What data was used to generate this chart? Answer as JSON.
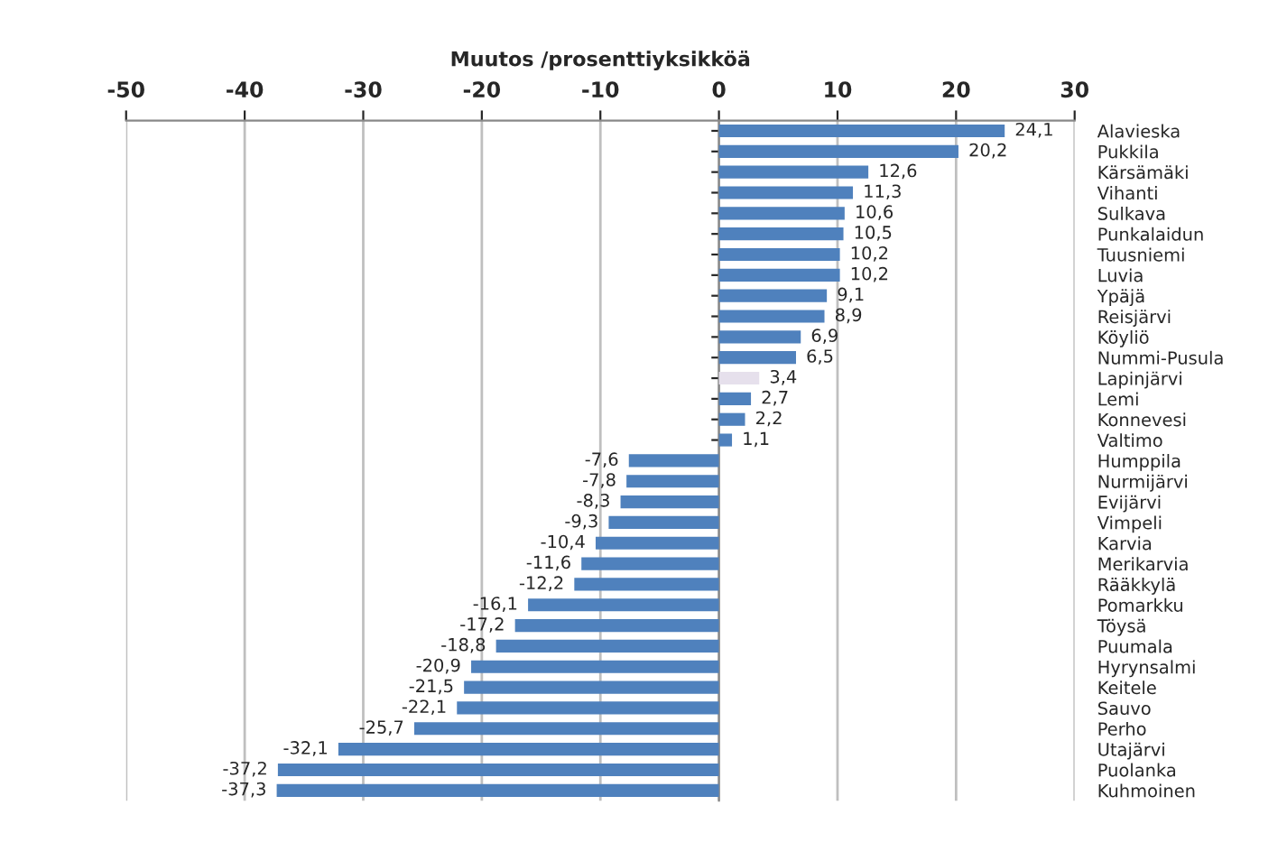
{
  "chart_data": {
    "type": "bar",
    "orientation": "horizontal",
    "xlabel": "Muutos /prosenttiyksikköä",
    "categories": [
      "Alavieska",
      "Pukkila",
      "Kärsämäki",
      "Vihanti",
      "Sulkava",
      "Punkalaidun",
      "Tuusniemi",
      "Luvia",
      "Ypäjä",
      "Reisjärvi",
      "Köyliö",
      "Nummi-Pusula",
      "Lapinjärvi",
      "Lemi",
      "Konnevesi",
      "Valtimo",
      "Humppila",
      "Nurmijärvi",
      "Evijärvi",
      "Vimpeli",
      "Karvia",
      "Merikarvia",
      "Rääkkylä",
      "Pomarkku",
      "Töysä",
      "Puumala",
      "Hyrynsalmi",
      "Keitele",
      "Sauvo",
      "Perho",
      "Utajärvi",
      "Puolanka",
      "Kuhmoinen"
    ],
    "values": [
      24.1,
      20.2,
      12.6,
      11.3,
      10.6,
      10.5,
      10.2,
      10.2,
      9.1,
      8.9,
      6.9,
      6.5,
      3.4,
      2.7,
      2.2,
      1.1,
      -7.6,
      -7.8,
      -8.3,
      -9.3,
      -10.4,
      -11.6,
      -12.2,
      -16.1,
      -17.2,
      -18.8,
      -20.9,
      -21.5,
      -22.1,
      -25.7,
      -32.1,
      -37.2,
      -37.3
    ],
    "value_labels": [
      "24,1",
      "20,2",
      "12,6",
      "11,3",
      "10,6",
      "10,5",
      "10,2",
      "10,2",
      "9,1",
      "8,9",
      "6,9",
      "6,5",
      "3,4",
      "2,7",
      "2,2",
      "1,1",
      "-7,6",
      "-7,8",
      "-8,3",
      "-9,3",
      "-10,4",
      "-11,6",
      "-12,2",
      "-16,1",
      "-17,2",
      "-18,8",
      "-20,9",
      "-21,5",
      "-22,1",
      "-25,7",
      "-32,1",
      "-37,2",
      "-37,3"
    ],
    "colors": [
      "#4f81bd",
      "#4f81bd",
      "#4f81bd",
      "#4f81bd",
      "#4f81bd",
      "#4f81bd",
      "#4f81bd",
      "#4f81bd",
      "#4f81bd",
      "#4f81bd",
      "#4f81bd",
      "#4f81bd",
      "#e6e0ec",
      "#4f81bd",
      "#4f81bd",
      "#4f81bd",
      "#4f81bd",
      "#4f81bd",
      "#4f81bd",
      "#4f81bd",
      "#4f81bd",
      "#4f81bd",
      "#4f81bd",
      "#4f81bd",
      "#4f81bd",
      "#4f81bd",
      "#4f81bd",
      "#4f81bd",
      "#4f81bd",
      "#4f81bd",
      "#4f81bd",
      "#4f81bd",
      "#4f81bd"
    ],
    "xlim": [
      -50,
      30
    ],
    "xticks": [
      -50,
      -40,
      -30,
      -20,
      -10,
      0,
      10,
      20,
      30
    ],
    "grid": "x"
  }
}
